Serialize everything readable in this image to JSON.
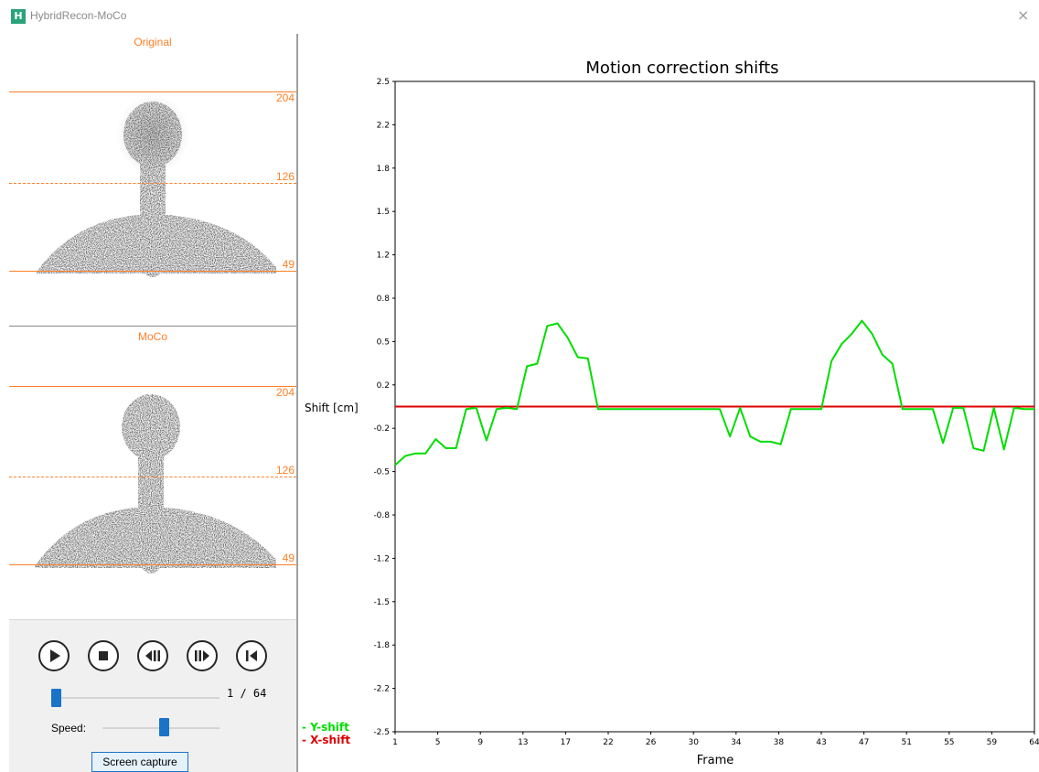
{
  "window": {
    "title": "HybridRecon-MoCo",
    "close_icon": "×"
  },
  "views": {
    "original": {
      "title": "Original",
      "upper_label": "204",
      "mid_label": "126",
      "lower_label": "49"
    },
    "moco": {
      "title": "MoCo",
      "upper_label": "204",
      "mid_label": "126",
      "lower_label": "49"
    }
  },
  "controls": {
    "buttons": [
      {
        "name": "play-button",
        "icon": "play-icon"
      },
      {
        "name": "stop-button",
        "icon": "stop-icon"
      },
      {
        "name": "step-back-button",
        "icon": "step-back-icon"
      },
      {
        "name": "step-forward-button",
        "icon": "step-forward-icon"
      },
      {
        "name": "go-to-start-button",
        "icon": "go-to-start-icon"
      }
    ],
    "frame_counter": "1 / 64",
    "frame_position": 1,
    "frame_total": 64,
    "speed_label": "Speed:",
    "speed_value": 0.52,
    "capture_label": "Screen capture"
  },
  "colors": {
    "accent_orange": "#ff7f27",
    "y_shift": "#00dd00",
    "x_shift": "#dd0000",
    "slider_thumb": "#1a73c7"
  },
  "chart_data": {
    "type": "line",
    "title": "Motion correction shifts",
    "xlabel": "Frame",
    "ylabel": "Shift [cm]",
    "xlim": [
      1,
      64
    ],
    "ylim": [
      -2.5,
      2.5
    ],
    "x_ticks": [
      "1",
      "5",
      "9",
      "13",
      "17",
      "22",
      "26",
      "30",
      "34",
      "38",
      "43",
      "47",
      "51",
      "55",
      "59",
      "64"
    ],
    "y_ticks": [
      "2.5",
      "2.2",
      "1.8",
      "1.5",
      "1.2",
      "0.8",
      "0.5",
      "0.2",
      "-0.2",
      "-0.5",
      "-0.8",
      "-1.2",
      "-1.5",
      "-1.8",
      "-2.2",
      "-2.5"
    ],
    "grid": false,
    "legend_position": "bottom-left",
    "series": [
      {
        "name": "- Y-shift",
        "color": "#00dd00",
        "x": [
          1,
          2,
          3,
          4,
          5,
          6,
          7,
          8,
          9,
          10,
          11,
          12,
          13,
          14,
          15,
          16,
          17,
          18,
          19,
          20,
          21,
          22,
          23,
          24,
          25,
          26,
          27,
          28,
          29,
          30,
          31,
          32,
          33,
          34,
          35,
          36,
          37,
          38,
          39,
          40,
          41,
          42,
          43,
          44,
          45,
          46,
          47,
          48,
          49,
          50,
          51,
          52,
          53,
          54,
          55,
          56,
          57,
          58,
          59,
          60,
          61,
          62,
          63,
          64
        ],
        "values": [
          -0.45,
          -0.38,
          -0.36,
          -0.36,
          -0.25,
          -0.32,
          -0.32,
          -0.02,
          -0.01,
          -0.26,
          -0.02,
          -0.01,
          -0.02,
          0.31,
          0.33,
          0.62,
          0.64,
          0.53,
          0.38,
          0.37,
          -0.02,
          -0.02,
          -0.02,
          -0.02,
          -0.02,
          -0.02,
          -0.02,
          -0.02,
          -0.02,
          -0.02,
          -0.02,
          -0.02,
          -0.02,
          -0.23,
          -0.01,
          -0.23,
          -0.27,
          -0.27,
          -0.29,
          -0.02,
          -0.02,
          -0.02,
          -0.02,
          0.35,
          0.48,
          0.56,
          0.66,
          0.56,
          0.4,
          0.33,
          -0.02,
          -0.02,
          -0.02,
          -0.02,
          -0.28,
          -0.01,
          -0.01,
          -0.32,
          -0.34,
          -0.01,
          -0.33,
          -0.01,
          -0.02,
          -0.02
        ]
      },
      {
        "name": "- X-shift",
        "color": "#dd0000",
        "x": [
          1,
          64
        ],
        "values": [
          0,
          0
        ]
      }
    ]
  }
}
